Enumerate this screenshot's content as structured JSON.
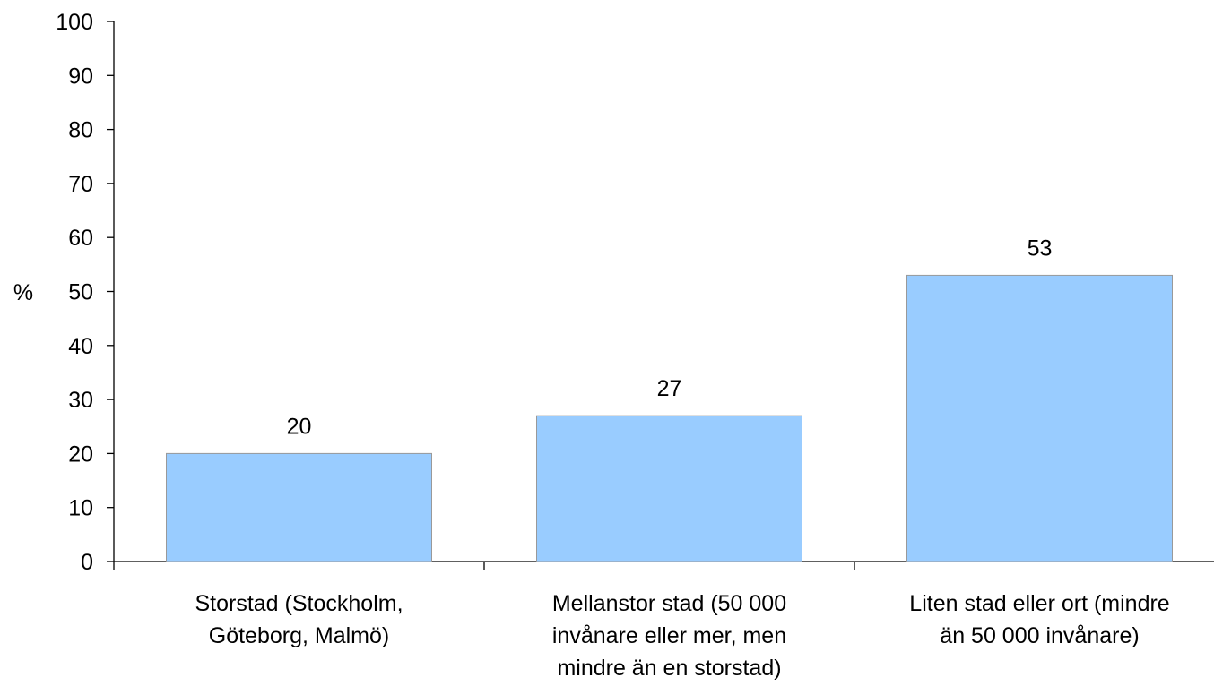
{
  "chart_data": {
    "type": "bar",
    "title": "",
    "xlabel": "",
    "ylabel": "%",
    "ylim": [
      0,
      100
    ],
    "yticks": [
      0,
      10,
      20,
      30,
      40,
      50,
      60,
      70,
      80,
      90,
      100
    ],
    "grid": false,
    "legend": "none",
    "bar_color": "#99CCFF",
    "bar_edge_color": "#999999",
    "categories": [
      [
        "Storstad (Stockholm,",
        "Göteborg, Malmö)"
      ],
      [
        "Mellanstor stad (50 000",
        "invånare eller mer, men",
        "mindre än en storstad)"
      ],
      [
        "Liten stad eller ort (mindre",
        "än 50 000 invånare)"
      ]
    ],
    "values": [
      20,
      27,
      53
    ],
    "data_labels": [
      "20",
      "27",
      "53"
    ]
  }
}
